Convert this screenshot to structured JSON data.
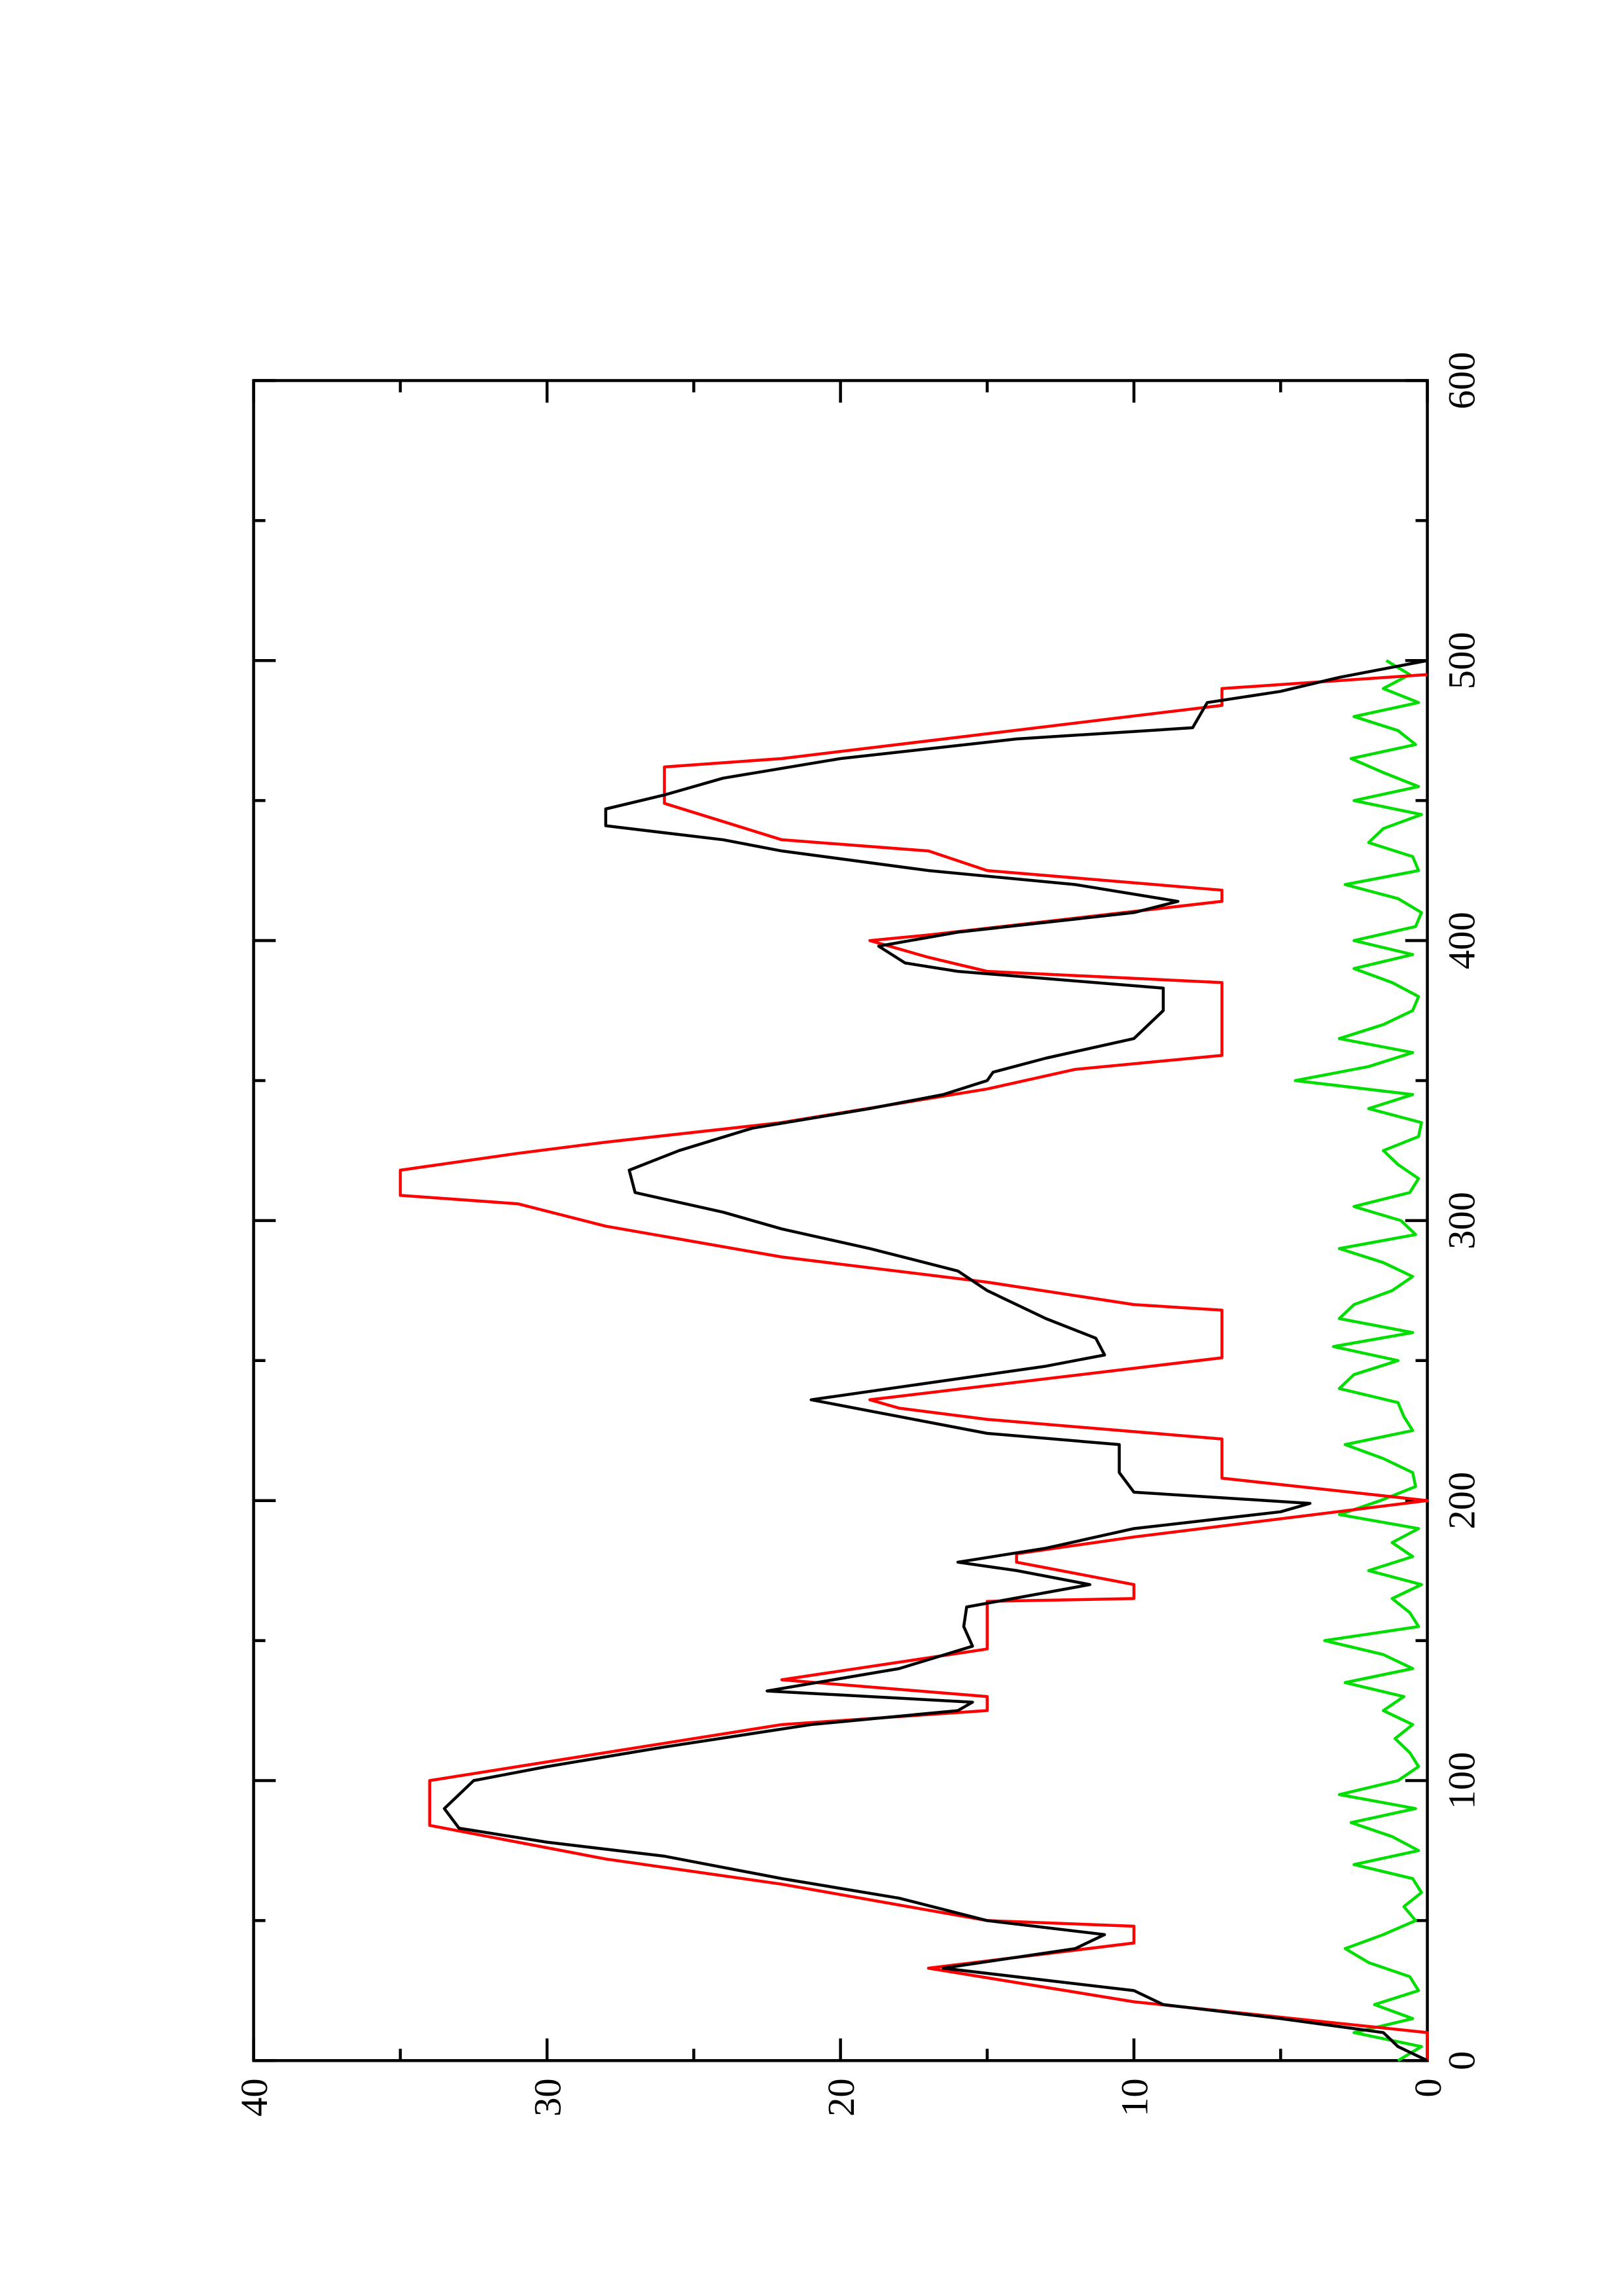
{
  "chart_data": {
    "type": "line",
    "xlim": [
      0,
      600
    ],
    "xticks": [
      0,
      100,
      200,
      300,
      400,
      500,
      600
    ],
    "xticks_minor": [
      50,
      150,
      250,
      350,
      450,
      550
    ],
    "ylim": [
      0,
      40
    ],
    "yticks": [
      0,
      10,
      20,
      30,
      40
    ],
    "yticks_minor": [
      5,
      15,
      25,
      35
    ],
    "rotation": -90,
    "series": [
      {
        "color": "#ff0000",
        "x": [
          0,
          10,
          21,
          33,
          42,
          48,
          50,
          63,
          72,
          78,
          84,
          100,
          105,
          110,
          120,
          125,
          130,
          136,
          147,
          164,
          165,
          170,
          178,
          181,
          187,
          200,
          208,
          222,
          229,
          233,
          236,
          241,
          251,
          268,
          270,
          278,
          287,
          298,
          306,
          309,
          318,
          324,
          328,
          335,
          347,
          354,
          359,
          385,
          389,
          394,
          400,
          402,
          414,
          418,
          425,
          432,
          436,
          449,
          462,
          465,
          484,
          490,
          495
        ],
        "values": [
          0,
          0,
          10,
          17,
          10,
          10,
          15,
          22,
          28,
          31,
          34,
          34,
          31,
          28,
          22,
          15,
          15,
          22,
          15,
          15,
          10,
          10,
          14,
          14,
          10,
          0,
          7,
          7,
          15,
          18,
          19,
          15,
          7,
          7,
          10,
          15,
          22,
          28,
          31,
          35,
          35,
          31,
          28,
          22,
          15,
          12,
          7,
          7,
          15,
          17,
          19,
          17,
          7,
          7,
          15,
          17,
          22,
          26,
          26,
          22,
          7,
          7,
          0
        ]
      },
      {
        "color": "#000000",
        "x": [
          0,
          5,
          10,
          15,
          20,
          25,
          33,
          40,
          45,
          50,
          58,
          65,
          73,
          78,
          83,
          90,
          95,
          100,
          105,
          112,
          120,
          125,
          128,
          132,
          140,
          148,
          155,
          162,
          170,
          175,
          178,
          183,
          190,
          196,
          199,
          203,
          210,
          220,
          224,
          230,
          236,
          242,
          248,
          252,
          258,
          265,
          275,
          282,
          290,
          297,
          303,
          310,
          318,
          325,
          333,
          340,
          345,
          350,
          353,
          358,
          365,
          375,
          383,
          389,
          392,
          398,
          403,
          410,
          414,
          420,
          425,
          432,
          436,
          441,
          447,
          452,
          458,
          465,
          472,
          476,
          485,
          489,
          494,
          498,
          500
        ],
        "values": [
          0,
          1,
          1.5,
          5,
          9,
          10,
          16.5,
          12,
          11,
          15,
          18,
          22,
          26,
          30,
          33,
          33.5,
          33,
          32.5,
          30,
          26,
          21,
          16,
          15.5,
          22.5,
          18,
          15.5,
          15.8,
          15.7,
          11.5,
          14,
          16,
          13,
          10,
          5,
          4,
          10,
          10.5,
          10.5,
          15,
          18,
          21,
          17,
          13,
          11,
          11.3,
          13,
          15,
          16,
          19,
          22,
          24,
          27,
          27.2,
          25.5,
          23,
          19,
          16.5,
          15,
          14.8,
          13,
          10,
          9,
          9,
          16,
          17.8,
          18.7,
          16,
          10,
          8.5,
          12,
          17,
          22,
          24,
          28,
          28,
          26,
          24,
          20,
          14,
          8,
          7.5,
          5,
          3,
          1,
          0
        ]
      },
      {
        "color": "#00dd00",
        "x": [
          0,
          5,
          10,
          15,
          20,
          25,
          30,
          35,
          40,
          45,
          50,
          55,
          60,
          65,
          70,
          75,
          80,
          85,
          90,
          95,
          100,
          105,
          110,
          115,
          120,
          125,
          130,
          135,
          140,
          145,
          150,
          155,
          160,
          165,
          170,
          175,
          180,
          185,
          190,
          195,
          200,
          205,
          210,
          215,
          220,
          225,
          230,
          235,
          240,
          245,
          250,
          255,
          260,
          265,
          270,
          275,
          280,
          285,
          290,
          295,
          300,
          305,
          310,
          315,
          320,
          325,
          330,
          335,
          340,
          345,
          350,
          355,
          360,
          365,
          370,
          375,
          380,
          385,
          390,
          395,
          400,
          405,
          410,
          415,
          420,
          425,
          430,
          435,
          440,
          445,
          450,
          455,
          460,
          465,
          470,
          475,
          480,
          485,
          490,
          495,
          500
        ],
        "values": [
          1,
          0.2,
          2.5,
          0.5,
          1.8,
          0.3,
          0.6,
          2,
          2.8,
          1.5,
          0.4,
          0.8,
          0.2,
          0.5,
          2.5,
          0.3,
          1.2,
          2.6,
          0.4,
          3,
          1,
          0.3,
          0.6,
          1.1,
          0.5,
          1.5,
          0.8,
          2.8,
          0.5,
          1.5,
          3.5,
          0.3,
          0.6,
          1.2,
          0.2,
          2,
          0.5,
          1.2,
          0.3,
          3,
          1.6,
          0.4,
          0.5,
          1.5,
          2.8,
          0.5,
          0.8,
          1,
          3,
          2.5,
          1,
          3.2,
          0.5,
          3,
          2.5,
          1.2,
          0.5,
          1.5,
          3,
          0.4,
          0.9,
          2.5,
          0.6,
          0.3,
          1,
          1.5,
          0.3,
          0.2,
          2,
          0.5,
          4.5,
          2,
          0.5,
          3,
          1.5,
          0.5,
          0.3,
          1.2,
          2.5,
          0.5,
          2.5,
          0.4,
          0.2,
          1,
          2.8,
          0.3,
          0.5,
          2,
          1.5,
          0.2,
          2.5,
          0.3,
          1.5,
          2.6,
          0.4,
          1,
          2.5,
          0.3,
          1.5,
          0.6,
          1.4
        ]
      }
    ]
  }
}
